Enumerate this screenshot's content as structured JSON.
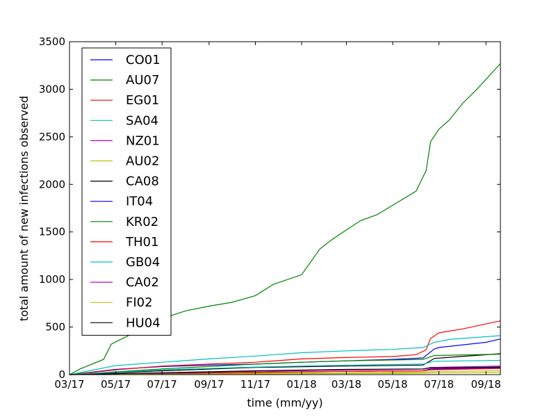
{
  "chart_data": {
    "type": "line",
    "title": "",
    "xlabel": "time (mm/yy)",
    "ylabel": "total amount of new infections observed",
    "xlim": [
      "2017-03-01",
      "2018-09-20"
    ],
    "ylim": [
      0,
      3500
    ],
    "xticks": [
      "03/17",
      "05/17",
      "07/17",
      "09/17",
      "11/17",
      "01/18",
      "03/18",
      "05/18",
      "07/18",
      "09/18"
    ],
    "yticks": [
      "0",
      "500",
      "1000",
      "1500",
      "2000",
      "2500",
      "3000",
      "3500"
    ],
    "grid": false,
    "legend_position": "top-left",
    "series": [
      {
        "name": "CO01",
        "color": "#0000ff",
        "x": [
          "2017-03-01",
          "2017-05-01",
          "2017-07-01",
          "2017-09-01",
          "2017-11-01",
          "2018-01-01",
          "2018-03-01",
          "2018-05-01",
          "2018-06-10",
          "2018-06-25",
          "2018-07-01",
          "2018-09-01",
          "2018-09-20"
        ],
        "y": [
          0,
          55,
          85,
          100,
          110,
          130,
          145,
          160,
          175,
          270,
          285,
          340,
          375
        ]
      },
      {
        "name": "AU07",
        "color": "#008000",
        "x": [
          "2017-03-01",
          "2017-03-15",
          "2017-04-15",
          "2017-04-25",
          "2017-05-15",
          "2017-06-20",
          "2017-07-01",
          "2017-08-01",
          "2017-09-01",
          "2017-10-01",
          "2017-11-01",
          "2017-11-25",
          "2018-01-01",
          "2018-01-25",
          "2018-02-10",
          "2018-02-25",
          "2018-03-20",
          "2018-04-10",
          "2018-05-01",
          "2018-06-01",
          "2018-06-10",
          "2018-06-14",
          "2018-06-20",
          "2018-07-01",
          "2018-07-15",
          "2018-08-01",
          "2018-08-20",
          "2018-09-20"
        ],
        "y": [
          0,
          60,
          160,
          320,
          400,
          540,
          590,
          670,
          720,
          760,
          830,
          950,
          1050,
          1320,
          1420,
          1500,
          1620,
          1680,
          1780,
          1930,
          2080,
          2140,
          2450,
          2580,
          2680,
          2850,
          3000,
          3270
        ]
      },
      {
        "name": "EG01",
        "color": "#ff0000",
        "x": [
          "2017-03-01",
          "2017-05-01",
          "2017-07-01",
          "2017-09-01",
          "2017-11-01",
          "2018-01-01",
          "2018-03-01",
          "2018-05-01",
          "2018-06-01",
          "2018-06-14",
          "2018-06-20",
          "2018-07-01",
          "2018-08-01",
          "2018-09-20"
        ],
        "y": [
          0,
          50,
          90,
          110,
          130,
          165,
          180,
          190,
          210,
          260,
          380,
          440,
          480,
          565
        ]
      },
      {
        "name": "SA04",
        "color": "#00bfbf",
        "x": [
          "2017-03-01",
          "2017-05-01",
          "2017-07-01",
          "2017-09-01",
          "2017-11-01",
          "2018-01-01",
          "2018-03-01",
          "2018-05-01",
          "2018-06-10",
          "2018-06-25",
          "2018-07-15",
          "2018-09-20"
        ],
        "y": [
          0,
          95,
          130,
          165,
          195,
          230,
          250,
          265,
          285,
          340,
          370,
          410
        ]
      },
      {
        "name": "NZ01",
        "color": "#bf00bf",
        "x": [
          "2017-03-01",
          "2017-07-01",
          "2017-11-01",
          "2018-03-01",
          "2018-06-10",
          "2018-06-20",
          "2018-09-20"
        ],
        "y": [
          0,
          10,
          22,
          35,
          40,
          60,
          80
        ]
      },
      {
        "name": "AU02",
        "color": "#bfbf00",
        "x": [
          "2017-03-01",
          "2017-07-01",
          "2017-11-01",
          "2018-03-01",
          "2018-06-10",
          "2018-06-20",
          "2018-09-20"
        ],
        "y": [
          0,
          8,
          15,
          20,
          25,
          32,
          40
        ]
      },
      {
        "name": "CA08",
        "color": "#000000",
        "x": [
          "2017-03-01",
          "2017-07-01",
          "2017-11-01",
          "2018-03-01",
          "2018-06-10",
          "2018-06-25",
          "2018-09-20"
        ],
        "y": [
          0,
          40,
          75,
          90,
          100,
          170,
          220
        ]
      },
      {
        "name": "IT04",
        "color": "#0000ff",
        "x": [
          "2017-03-01",
          "2017-07-01",
          "2017-11-01",
          "2018-03-01",
          "2018-06-10",
          "2018-06-20",
          "2018-09-20"
        ],
        "y": [
          0,
          12,
          25,
          35,
          40,
          55,
          70
        ]
      },
      {
        "name": "KR02",
        "color": "#008000",
        "x": [
          "2017-03-01",
          "2017-07-01",
          "2017-11-01",
          "2018-01-01",
          "2018-03-01",
          "2018-06-10",
          "2018-06-25",
          "2018-09-20"
        ],
        "y": [
          0,
          60,
          110,
          130,
          145,
          160,
          200,
          215
        ]
      },
      {
        "name": "TH01",
        "color": "#ff0000",
        "x": [
          "2017-03-01",
          "2017-07-01",
          "2017-11-01",
          "2018-03-01",
          "2018-06-10",
          "2018-06-20",
          "2018-09-20"
        ],
        "y": [
          0,
          15,
          25,
          35,
          40,
          50,
          65
        ]
      },
      {
        "name": "GB04",
        "color": "#00bfbf",
        "x": [
          "2017-03-01",
          "2017-07-01",
          "2017-11-01",
          "2018-03-01",
          "2018-06-10",
          "2018-06-25",
          "2018-09-20"
        ],
        "y": [
          0,
          50,
          80,
          100,
          110,
          140,
          150
        ]
      },
      {
        "name": "CA02",
        "color": "#bf00bf",
        "x": [
          "2017-03-01",
          "2017-07-01",
          "2017-11-01",
          "2018-03-01",
          "2018-06-10",
          "2018-06-20",
          "2018-09-20"
        ],
        "y": [
          0,
          18,
          35,
          50,
          58,
          75,
          90
        ]
      },
      {
        "name": "FI02",
        "color": "#bfbf00",
        "x": [
          "2017-03-01",
          "2017-07-01",
          "2017-11-01",
          "2018-03-01",
          "2018-06-10",
          "2018-06-20",
          "2018-09-20"
        ],
        "y": [
          0,
          5,
          8,
          12,
          15,
          18,
          22
        ]
      },
      {
        "name": "HU04",
        "color": "#000000",
        "x": [
          "2017-03-01",
          "2017-07-01",
          "2017-11-01",
          "2018-03-01",
          "2018-06-10",
          "2018-06-20",
          "2018-09-20"
        ],
        "y": [
          0,
          20,
          40,
          55,
          60,
          70,
          80
        ]
      }
    ]
  }
}
